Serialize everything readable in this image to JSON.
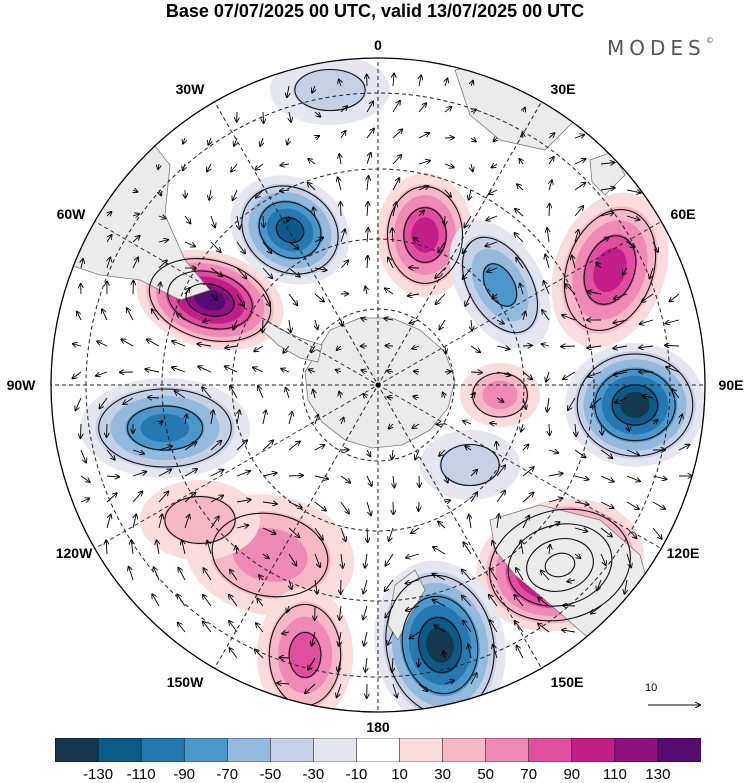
{
  "title": "Base 07/07/2025 00 UTC, valid 13/07/2025 00 UTC",
  "brand": {
    "text": "MODES",
    "mark": "©"
  },
  "lon_labels": {
    "l0": "0",
    "l30e": "30E",
    "l60e": "60E",
    "l90e": "90E",
    "l120e": "120E",
    "l150e": "150E",
    "l180": "180",
    "l150w": "150W",
    "l120w": "120W",
    "l90w": "90W",
    "l60w": "60W",
    "l30w": "30W"
  },
  "reference_vector": {
    "label": "10"
  },
  "colorbar": {
    "colors": [
      "#16384f",
      "#0d5a89",
      "#2678b1",
      "#4b97c9",
      "#93b9dc",
      "#c5d0e6",
      "#e6e6f1",
      "#ffffff",
      "#fbdcdc",
      "#f6b7c7",
      "#ef89b6",
      "#e04ea0",
      "#c11f87",
      "#901080",
      "#560b72"
    ],
    "tick_labels": [
      "-130",
      "-110",
      "-90",
      "-70",
      "-50",
      "-30",
      "-10",
      "10",
      "30",
      "50",
      "70",
      "90",
      "110",
      "130"
    ]
  },
  "palette": {
    "land": "#ebebeb",
    "coast": "#7a7a7a",
    "grid": "#222222"
  }
}
